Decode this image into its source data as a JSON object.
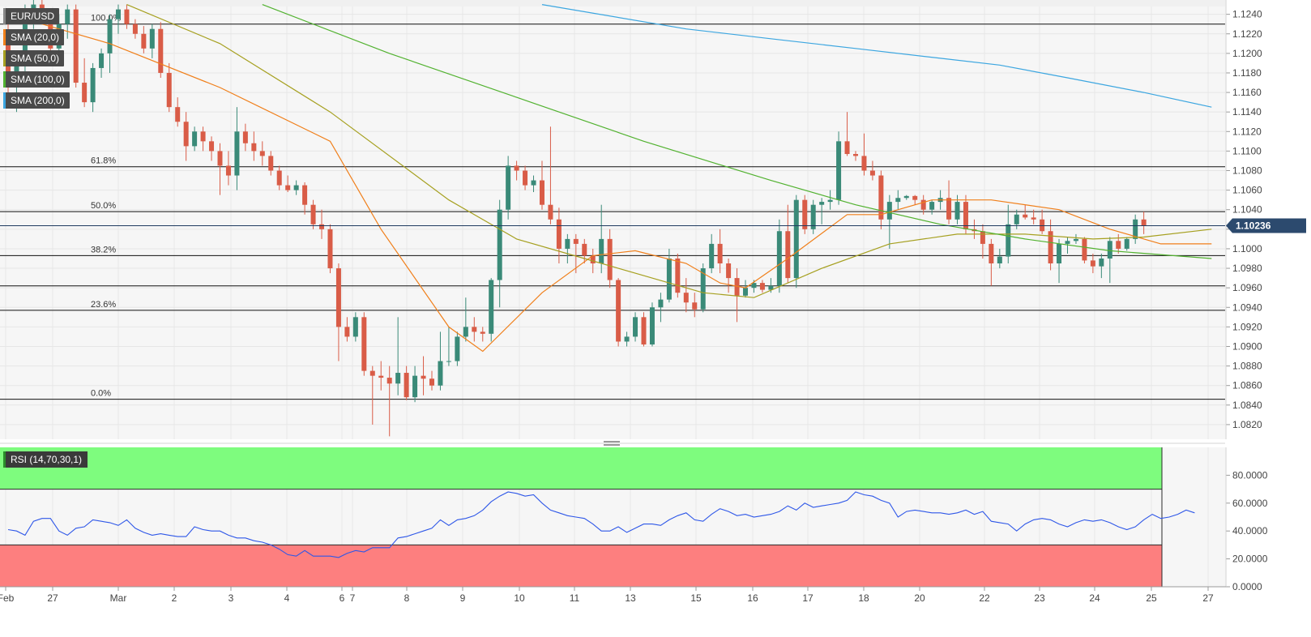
{
  "chart_data": [
    {
      "type": "candlestick",
      "symbol": "EUR/USD",
      "last_price": "1.10236",
      "ylim": [
        1.0805,
        1.1248
      ],
      "y_ticks": [
        "1.1240",
        "1.1220",
        "1.1200",
        "1.1180",
        "1.1160",
        "1.1140",
        "1.1120",
        "1.1100",
        "1.1080",
        "1.1060",
        "1.1040",
        "1.1020",
        "1.1000",
        "1.0980",
        "1.0960",
        "1.0940",
        "1.0920",
        "1.0900",
        "1.0880",
        "1.0860",
        "1.0840",
        "1.0820"
      ],
      "x_ticks": [
        "Feb",
        "27",
        "Mar",
        "2",
        "3",
        "4",
        "6",
        "7",
        "8",
        "9",
        "10",
        "11",
        "13",
        "15",
        "16",
        "17",
        "18",
        "20",
        "22",
        "23",
        "24",
        "25",
        "27"
      ],
      "fibonacci": [
        {
          "label": "100.0%",
          "value": 1.123
        },
        {
          "label": "61.8%",
          "value": 1.1084
        },
        {
          "label": "50.0%",
          "value": 1.1038
        },
        {
          "label": "38.2%",
          "value": 1.0993
        },
        {
          "label": "23.6%",
          "value": 1.0937
        },
        {
          "label": "0.0%",
          "value": 1.0846
        }
      ],
      "extra_levels": [
        1.0962
      ],
      "candles": [
        [
          1.122,
          1.123,
          1.115,
          1.1165
        ],
        [
          1.1165,
          1.12,
          1.114,
          1.119
        ],
        [
          1.119,
          1.125,
          1.118,
          1.124
        ],
        [
          1.124,
          1.1255,
          1.1225,
          1.125
        ],
        [
          1.125,
          1.1255,
          1.123,
          1.1235
        ],
        [
          1.1235,
          1.124,
          1.12,
          1.1205
        ],
        [
          1.1205,
          1.124,
          1.1195,
          1.123
        ],
        [
          1.123,
          1.125,
          1.1215,
          1.1245
        ],
        [
          1.1245,
          1.125,
          1.1165,
          1.117
        ],
        [
          1.117,
          1.1195,
          1.1145,
          1.115
        ],
        [
          1.115,
          1.119,
          1.114,
          1.1185
        ],
        [
          1.1185,
          1.1205,
          1.1175,
          1.12
        ],
        [
          1.12,
          1.124,
          1.118,
          1.1235
        ],
        [
          1.1235,
          1.125,
          1.122,
          1.1245
        ],
        [
          1.1245,
          1.125,
          1.1225,
          1.123
        ],
        [
          1.123,
          1.1235,
          1.1215,
          1.122
        ],
        [
          1.122,
          1.1228,
          1.12,
          1.1205
        ],
        [
          1.1205,
          1.123,
          1.1195,
          1.1225
        ],
        [
          1.1225,
          1.1232,
          1.1175,
          1.118
        ],
        [
          1.118,
          1.119,
          1.114,
          1.1145
        ],
        [
          1.1145,
          1.1155,
          1.1125,
          1.113
        ],
        [
          1.113,
          1.114,
          1.109,
          1.1105
        ],
        [
          1.1105,
          1.1125,
          1.11,
          1.112
        ],
        [
          1.112,
          1.1125,
          1.11,
          1.111
        ],
        [
          1.111,
          1.1115,
          1.109,
          1.11
        ],
        [
          1.11,
          1.1108,
          1.1055,
          1.1085
        ],
        [
          1.1085,
          1.11,
          1.1065,
          1.1075
        ],
        [
          1.1075,
          1.1145,
          1.106,
          1.112
        ],
        [
          1.112,
          1.1128,
          1.11,
          1.1108
        ],
        [
          1.1108,
          1.112,
          1.109,
          1.11
        ],
        [
          1.11,
          1.111,
          1.1085,
          1.1095
        ],
        [
          1.1095,
          1.11,
          1.1075,
          1.108
        ],
        [
          1.108,
          1.1085,
          1.106,
          1.1065
        ],
        [
          1.1065,
          1.1075,
          1.1058,
          1.106
        ],
        [
          1.106,
          1.107,
          1.1055,
          1.1065
        ],
        [
          1.1065,
          1.1068,
          1.1035,
          1.1045
        ],
        [
          1.1045,
          1.105,
          1.102,
          1.1025
        ],
        [
          1.1025,
          1.104,
          1.101,
          1.102
        ],
        [
          1.102,
          1.1025,
          1.0975,
          1.098
        ],
        [
          1.098,
          1.0985,
          1.0885,
          1.092
        ],
        [
          1.092,
          1.093,
          1.0905,
          1.091
        ],
        [
          1.091,
          1.0935,
          1.0905,
          1.093
        ],
        [
          1.093,
          1.0935,
          1.087,
          1.0875
        ],
        [
          1.0875,
          1.088,
          1.082,
          1.087
        ],
        [
          1.087,
          1.0885,
          1.0855,
          1.0868
        ],
        [
          1.0868,
          1.088,
          1.0808,
          1.0862
        ],
        [
          1.0862,
          1.093,
          1.085,
          1.0873
        ],
        [
          1.0873,
          1.088,
          1.0845,
          1.0848
        ],
        [
          1.0848,
          1.088,
          1.0843,
          1.087
        ],
        [
          1.087,
          1.089,
          1.085,
          1.0867
        ],
        [
          1.0867,
          1.0875,
          1.0855,
          1.086
        ],
        [
          1.086,
          1.0915,
          1.0855,
          1.0885
        ],
        [
          1.0885,
          1.092,
          1.088,
          1.0885
        ],
        [
          1.0885,
          1.0915,
          1.088,
          1.091
        ],
        [
          1.091,
          1.095,
          1.0905,
          1.092
        ],
        [
          1.092,
          1.093,
          1.0905,
          1.0915
        ],
        [
          1.0915,
          1.092,
          1.0905,
          1.0913
        ],
        [
          1.0913,
          1.097,
          1.0905,
          1.0968
        ],
        [
          1.0968,
          1.105,
          1.094,
          1.104
        ],
        [
          1.104,
          1.1095,
          1.103,
          1.1085
        ],
        [
          1.1085,
          1.109,
          1.107,
          1.108
        ],
        [
          1.108,
          1.1085,
          1.106,
          1.1065
        ],
        [
          1.1065,
          1.1075,
          1.1058,
          1.107
        ],
        [
          1.107,
          1.109,
          1.104,
          1.1045
        ],
        [
          1.1045,
          1.1125,
          1.1025,
          1.103
        ],
        [
          1.103,
          1.1042,
          1.0985,
          1.1
        ],
        [
          1.1,
          1.1015,
          1.0985,
          1.101
        ],
        [
          1.101,
          1.1015,
          1.0975,
          1.1005
        ],
        [
          1.1005,
          1.101,
          1.0985,
          1.0993
        ],
        [
          1.0993,
          1.1,
          1.0975,
          1.0985
        ],
        [
          1.0985,
          1.1045,
          1.0975,
          1.101
        ],
        [
          1.101,
          1.102,
          1.096,
          1.0968
        ],
        [
          1.0968,
          1.097,
          1.09,
          1.0905
        ],
        [
          1.0905,
          1.0915,
          1.09,
          1.091
        ],
        [
          1.091,
          1.0935,
          1.0905,
          1.093
        ],
        [
          1.093,
          1.0935,
          1.09,
          1.0902
        ],
        [
          1.0902,
          1.0945,
          1.09,
          1.094
        ],
        [
          1.094,
          1.0955,
          1.0925,
          1.0948
        ],
        [
          1.0948,
          1.1,
          1.0945,
          1.099
        ],
        [
          1.099,
          1.0995,
          1.095,
          1.0955
        ],
        [
          1.0955,
          1.097,
          1.0935,
          1.0945
        ],
        [
          1.0945,
          1.0955,
          1.093,
          1.0938
        ],
        [
          1.0938,
          1.0985,
          1.0935,
          1.098
        ],
        [
          1.098,
          1.1015,
          1.0975,
          1.1005
        ],
        [
          1.1005,
          1.102,
          1.0975,
          1.0985
        ],
        [
          1.0985,
          1.099,
          1.0955,
          1.097
        ],
        [
          1.097,
          1.098,
          1.0925,
          1.0952
        ],
        [
          1.0952,
          1.0968,
          1.095,
          1.096
        ],
        [
          1.096,
          1.0968,
          1.0955,
          1.0965
        ],
        [
          1.0965,
          1.0968,
          1.0955,
          1.0958
        ],
        [
          1.0958,
          1.097,
          1.0955,
          1.0962
        ],
        [
          1.0962,
          1.103,
          1.0955,
          1.1018
        ],
        [
          1.1018,
          1.1045,
          1.0965,
          1.097
        ],
        [
          1.097,
          1.1055,
          1.096,
          1.105
        ],
        [
          1.105,
          1.1055,
          1.1015,
          1.102
        ],
        [
          1.102,
          1.105,
          1.1015,
          1.1045
        ],
        [
          1.1045,
          1.1052,
          1.1025,
          1.1048
        ],
        [
          1.1048,
          1.106,
          1.104,
          1.105
        ],
        [
          1.105,
          1.112,
          1.1045,
          1.111
        ],
        [
          1.111,
          1.114,
          1.1095,
          1.1097
        ],
        [
          1.1097,
          1.11,
          1.109,
          1.1095
        ],
        [
          1.1095,
          1.1118,
          1.1075,
          1.108
        ],
        [
          1.108,
          1.109,
          1.107,
          1.1075
        ],
        [
          1.1075,
          1.108,
          1.102,
          1.103
        ],
        [
          1.103,
          1.1055,
          1.1,
          1.1048
        ],
        [
          1.1048,
          1.106,
          1.104,
          1.1052
        ],
        [
          1.1052,
          1.1055,
          1.105,
          1.1054
        ],
        [
          1.1054,
          1.1055,
          1.1045,
          1.105
        ],
        [
          1.105,
          1.1055,
          1.1035,
          1.104
        ],
        [
          1.104,
          1.105,
          1.1035,
          1.1048
        ],
        [
          1.1048,
          1.106,
          1.104,
          1.1052
        ],
        [
          1.1052,
          1.107,
          1.1025,
          1.103
        ],
        [
          1.103,
          1.1055,
          1.1025,
          1.1048
        ],
        [
          1.1048,
          1.1055,
          1.1015,
          1.102
        ],
        [
          1.102,
          1.103,
          1.101,
          1.1018
        ],
        [
          1.1018,
          1.1025,
          1.099,
          1.1005
        ],
        [
          1.1005,
          1.101,
          1.0962,
          1.0985
        ],
        [
          1.0985,
          1.1,
          1.098,
          1.0992
        ],
        [
          1.0992,
          1.1045,
          1.0985,
          1.1025
        ],
        [
          1.1025,
          1.104,
          1.102,
          1.1035
        ],
        [
          1.1035,
          1.1045,
          1.103,
          1.1032
        ],
        [
          1.1032,
          1.104,
          1.1025,
          1.103
        ],
        [
          1.103,
          1.104,
          1.1015,
          1.1018
        ],
        [
          1.1018,
          1.103,
          1.0978,
          1.0985
        ],
        [
          1.0985,
          1.101,
          1.0965,
          1.1005
        ],
        [
          1.1005,
          1.1012,
          1.0995,
          1.1008
        ],
        [
          1.1008,
          1.1015,
          1.1005,
          1.101
        ],
        [
          1.101,
          1.1012,
          1.0985,
          1.0988
        ],
        [
          1.0988,
          1.0995,
          1.0975,
          1.0982
        ],
        [
          1.0982,
          1.0995,
          1.097,
          1.099
        ],
        [
          1.099,
          1.1012,
          1.0965,
          1.1008
        ],
        [
          1.1008,
          1.1015,
          1.0995,
          1.1
        ],
        [
          1.1,
          1.1012,
          1.0998,
          1.101
        ],
        [
          1.101,
          1.1035,
          1.1005,
          1.103
        ],
        [
          1.103,
          1.1038,
          1.1015,
          1.1024
        ]
      ],
      "series": [
        {
          "name": "SMA (20,0)",
          "color": "#f07f1a",
          "x": [
            0,
            12,
            25,
            38,
            44,
            52,
            56,
            63,
            69,
            74,
            80,
            84,
            87,
            92,
            99,
            103,
            109,
            116,
            124,
            130,
            136,
            142
          ],
          "values": [
            1.124,
            1.121,
            1.1165,
            1.111,
            1.102,
            1.092,
            1.0895,
            1.0955,
            1.0993,
            1.0998,
            1.0985,
            1.0965,
            1.096,
            1.099,
            1.1035,
            1.1035,
            1.105,
            1.105,
            1.104,
            1.102,
            1.1005,
            1.1005
          ]
        },
        {
          "name": "SMA (50,0)",
          "color": "#a6a020",
          "x": [
            14,
            25,
            38,
            52,
            60,
            68,
            74,
            82,
            88,
            96,
            104,
            112,
            120,
            128,
            134,
            142
          ],
          "values": [
            1.125,
            1.121,
            1.114,
            1.105,
            1.101,
            1.099,
            1.0975,
            1.0955,
            1.095,
            1.098,
            1.1005,
            1.1015,
            1.1015,
            1.101,
            1.1012,
            1.102
          ]
        },
        {
          "name": "SMA (100,0)",
          "color": "#52b230",
          "x": [
            30,
            45,
            60,
            75,
            90,
            100,
            110,
            120,
            130,
            142
          ],
          "values": [
            1.125,
            1.12,
            1.1155,
            1.111,
            1.107,
            1.1045,
            1.1025,
            1.101,
            1.0998,
            1.099
          ]
        },
        {
          "name": "SMA (200,0)",
          "color": "#3ca6e0",
          "x": [
            63,
            80,
            90,
            100,
            110,
            117,
            125,
            134,
            142
          ],
          "values": [
            1.125,
            1.1225,
            1.1215,
            1.1205,
            1.1195,
            1.1188,
            1.1175,
            1.116,
            1.1145
          ]
        }
      ]
    },
    {
      "type": "line",
      "title": "RSI (14,70,30,1)",
      "ylim": [
        0,
        100
      ],
      "y_ticks": [
        "80.0000",
        "60.0000",
        "40.0000",
        "20.0000",
        "0.0000"
      ],
      "overbought": 70,
      "oversold": 30,
      "series": [
        {
          "name": "RSI",
          "color": "#2e57e8",
          "values": [
            41,
            40,
            37,
            47,
            49,
            49,
            40,
            37,
            42,
            43,
            48,
            47,
            46,
            44,
            48,
            42,
            39,
            37,
            38,
            37,
            36,
            36,
            43,
            41,
            40,
            40,
            37,
            35,
            35,
            33,
            32,
            30,
            27,
            23,
            22,
            26,
            22,
            22,
            22,
            21,
            24,
            26,
            25,
            28,
            28,
            28,
            35,
            36,
            38,
            40,
            42,
            48,
            44,
            48,
            49,
            51,
            55,
            61,
            65,
            68,
            67,
            65,
            66,
            60,
            55,
            53,
            51,
            50,
            49,
            45,
            40,
            40,
            43,
            39,
            42,
            45,
            45,
            44,
            48,
            51,
            53,
            48,
            47,
            52,
            56,
            54,
            51,
            52,
            50,
            51,
            52,
            54,
            58,
            55,
            60,
            57,
            58,
            59,
            60,
            62,
            68,
            66,
            65,
            62,
            60,
            50,
            54,
            55,
            54,
            53,
            53,
            52,
            53,
            55,
            52,
            54,
            47,
            46,
            45,
            40,
            45,
            48,
            49,
            48,
            45,
            43,
            46,
            48,
            47,
            48,
            46,
            43,
            41,
            43,
            48,
            52,
            49,
            50,
            52,
            55,
            53
          ]
        }
      ]
    }
  ]
}
